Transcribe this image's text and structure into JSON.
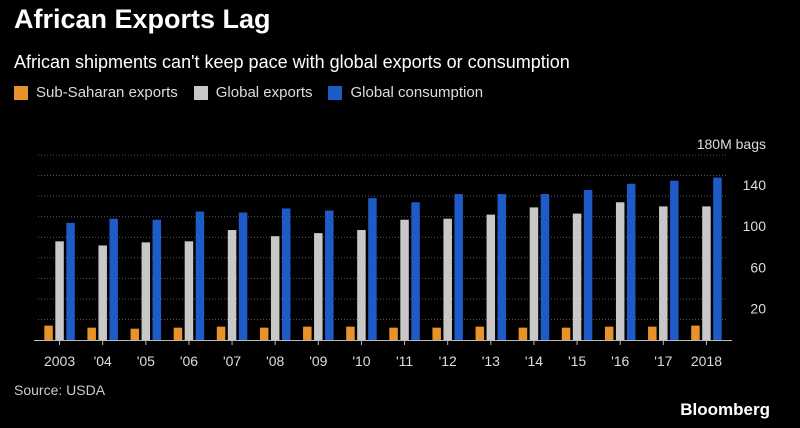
{
  "title": "African Exports Lag",
  "subtitle": "African shipments can't keep pace with global exports or consumption",
  "source": "Source: USDA",
  "brand": "Bloomberg",
  "colors": {
    "background": "#000000",
    "sub_saharan": "#E8922C",
    "global_exports": "#C8C8C8",
    "global_consumption": "#1F5BC6",
    "gridline": "#555555"
  },
  "chart_data": {
    "type": "bar",
    "title": "African Exports Lag",
    "subtitle": "African shipments can't keep pace with global exports or consumption",
    "categories": [
      "2003",
      "'04",
      "'05",
      "'06",
      "'07",
      "'08",
      "'09",
      "'10",
      "'11",
      "'12",
      "'13",
      "'14",
      "'15",
      "'16",
      "'17",
      "2018"
    ],
    "series": [
      {
        "name": "Sub-Saharan exports",
        "color": "#E8922C",
        "values": [
          14,
          12,
          11,
          12,
          13,
          12,
          13,
          13,
          12,
          12,
          13,
          12,
          12,
          13,
          13,
          14
        ]
      },
      {
        "name": "Global exports",
        "color": "#C8C8C8",
        "values": [
          96,
          92,
          95,
          96,
          107,
          101,
          104,
          107,
          117,
          118,
          122,
          129,
          123,
          134,
          130,
          130
        ]
      },
      {
        "name": "Global consumption",
        "color": "#1F5BC6",
        "values": [
          114,
          118,
          117,
          125,
          124,
          128,
          126,
          138,
          134,
          142,
          142,
          142,
          146,
          152,
          155,
          158
        ]
      }
    ],
    "ytick_labels": [
      "20",
      "60",
      "100",
      "140",
      "180M bags"
    ],
    "yticks": [
      20,
      60,
      100,
      140,
      180
    ],
    "ylim": [
      0,
      180
    ],
    "grid": true,
    "legend": "top-left",
    "yaxis_side": "right",
    "source": "Source: USDA"
  }
}
